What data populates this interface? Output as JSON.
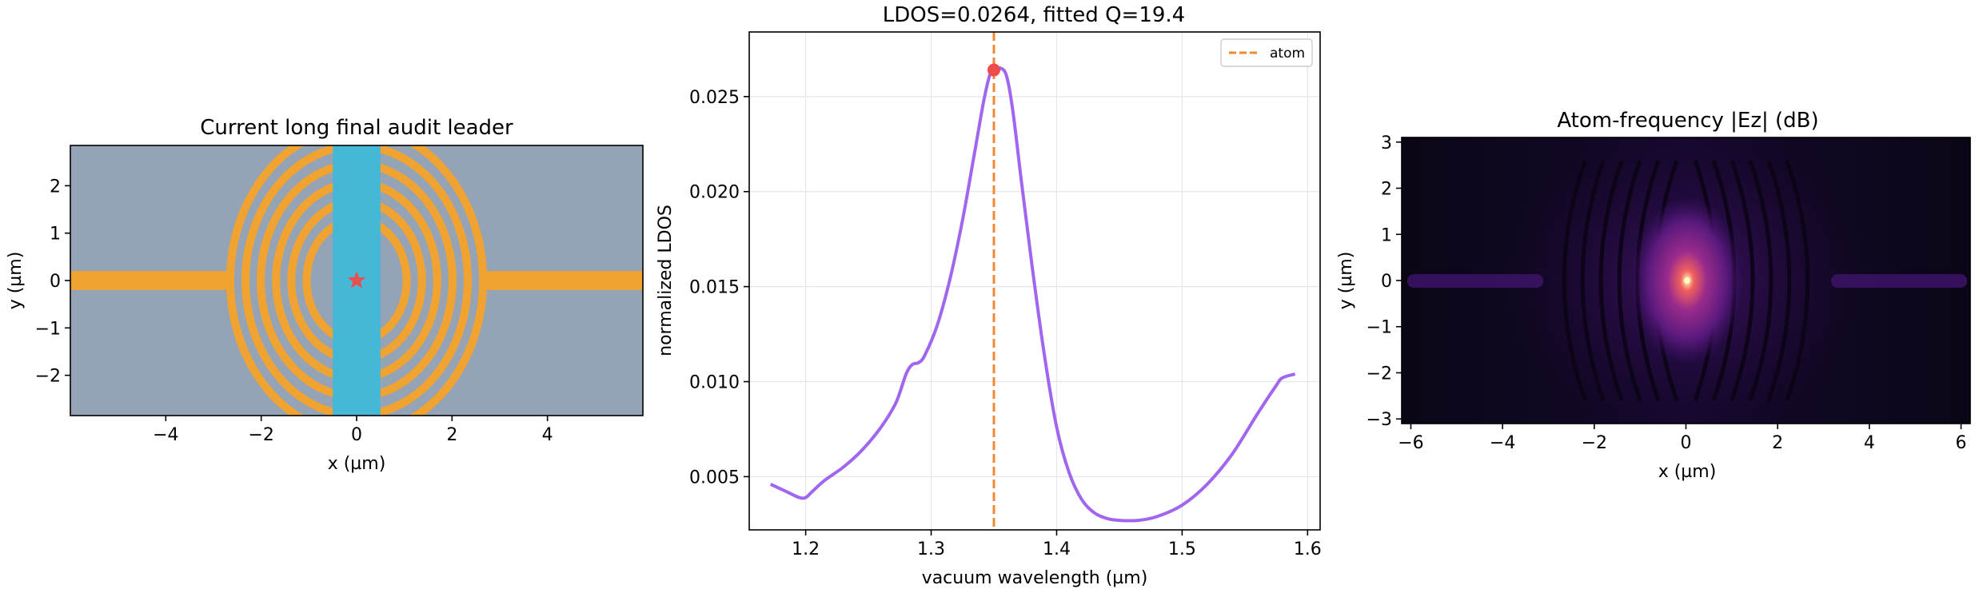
{
  "chart_data": [
    {
      "type": "heatmap",
      "title": "Current long final audit leader",
      "xlabel": "x (µm)",
      "ylabel": "y (µm)",
      "xlim": [
        -6,
        6
      ],
      "ylim": [
        -2.85,
        2.85
      ],
      "xticks": [
        -4,
        -2,
        0,
        2,
        4
      ],
      "xtick_labels": [
        "−4",
        "−2",
        "0",
        "2",
        "4"
      ],
      "yticks": [
        2,
        1,
        0,
        -1,
        -2
      ],
      "ytick_labels": [
        "2",
        "1",
        "0",
        "−1",
        "−2"
      ],
      "colors": {
        "background": "#94a3b5",
        "waveguide": "#f0a330",
        "slab": "#45b8d8",
        "atom": "#e8504f"
      },
      "slab_x": [
        -0.5,
        0.5
      ],
      "waveguide_halfwidth": 0.2,
      "waveguide_left_x": [
        -6,
        -2.7
      ],
      "waveguide_right_x": [
        2.7,
        6
      ],
      "ring_radii": [
        1.05,
        1.37,
        1.69,
        2.01,
        2.33,
        2.65
      ],
      "ring_width": 0.17,
      "atom_position": [
        0,
        0
      ]
    },
    {
      "type": "line",
      "title": "LDOS=0.0264, fitted Q=19.4",
      "xlabel": "vacuum wavelength (µm)",
      "ylabel": "normalized LDOS",
      "xlim": [
        1.155,
        1.61
      ],
      "ylim": [
        0.0022,
        0.0284
      ],
      "xticks": [
        1.2,
        1.3,
        1.4,
        1.5,
        1.6
      ],
      "xtick_labels": [
        "1.2",
        "1.3",
        "1.4",
        "1.5",
        "1.6"
      ],
      "yticks": [
        0.005,
        0.01,
        0.015,
        0.02,
        0.025
      ],
      "ytick_labels": [
        "0.005",
        "0.010",
        "0.015",
        "0.020",
        "0.025"
      ],
      "grid": true,
      "legend": {
        "placement": "top-right",
        "entries": [
          "atom"
        ]
      },
      "atom_wavelength": 1.35,
      "peak_marker": [
        1.35,
        0.0264
      ],
      "colors": {
        "curve": "#a066f0",
        "atom_line": "#f08a30",
        "marker": "#ee4b4b"
      },
      "series": [
        {
          "x": [
            1.172,
            1.185,
            1.195,
            1.2,
            1.205,
            1.215,
            1.23,
            1.245,
            1.26,
            1.272,
            1.28,
            1.285,
            1.29,
            1.295,
            1.305,
            1.315,
            1.325,
            1.335,
            1.342,
            1.347,
            1.35,
            1.355,
            1.36,
            1.365,
            1.372,
            1.38,
            1.39,
            1.4,
            1.41,
            1.42,
            1.43,
            1.44,
            1.45,
            1.465,
            1.48,
            1.5,
            1.52,
            1.54,
            1.56,
            1.575,
            1.58,
            1.59
          ],
          "y": [
            0.0046,
            0.0042,
            0.0039,
            0.0039,
            0.0042,
            0.0048,
            0.0055,
            0.0064,
            0.0076,
            0.0089,
            0.0104,
            0.0109,
            0.011,
            0.0114,
            0.013,
            0.0154,
            0.0185,
            0.0222,
            0.0248,
            0.0262,
            0.0264,
            0.0265,
            0.0261,
            0.0243,
            0.0205,
            0.0163,
            0.0115,
            0.0076,
            0.0052,
            0.0038,
            0.0031,
            0.0028,
            0.0027,
            0.0027,
            0.0029,
            0.0035,
            0.0046,
            0.0062,
            0.0083,
            0.0098,
            0.0102,
            0.0104
          ]
        }
      ]
    },
    {
      "type": "heatmap",
      "title": "Atom-frequency |Ez| (dB)",
      "xlabel": "x (µm)",
      "ylabel": "y (µm)",
      "xlim": [
        -6.2,
        6.2
      ],
      "ylim": [
        -3.1,
        3.1
      ],
      "xticks": [
        -6,
        -4,
        -2,
        0,
        2,
        4,
        6
      ],
      "xtick_labels": [
        "−6",
        "−4",
        "−2",
        "0",
        "2",
        "4",
        "6"
      ],
      "yticks": [
        3,
        2,
        1,
        0,
        -1,
        -2,
        -3
      ],
      "ytick_labels": [
        "3",
        "2",
        "1",
        "0",
        "−1",
        "−2",
        "−3"
      ],
      "colormap": [
        "#000004",
        "#2c115f",
        "#721f81",
        "#b73779",
        "#f1605d",
        "#feb078",
        "#fcfdbf"
      ]
    }
  ]
}
